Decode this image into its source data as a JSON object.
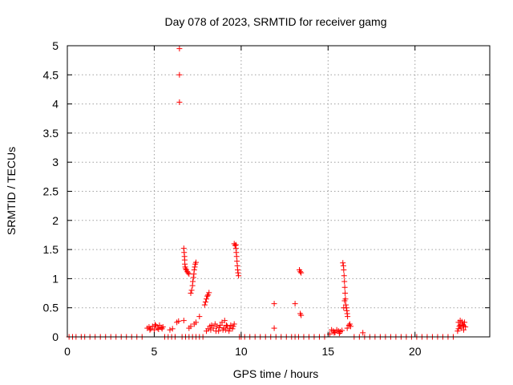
{
  "chart_data": {
    "type": "scatter",
    "title": "Day 078 of 2023, SRMTID for receiver gamg",
    "xlabel": "GPS time / hours",
    "ylabel": "SRMTID / TECUs",
    "xlim": [
      0,
      24.3
    ],
    "ylim": [
      0,
      5
    ],
    "xticks": [
      0,
      5,
      10,
      15,
      20
    ],
    "yticks": [
      0,
      0.5,
      1,
      1.5,
      2,
      2.5,
      3,
      3.5,
      4,
      4.5,
      5
    ],
    "xtick_labels": [
      "0",
      "5",
      "10",
      "15",
      "20"
    ],
    "ytick_labels": [
      "0",
      "0.5",
      "1",
      "1.5",
      "2",
      "2.5",
      "3",
      "3.5",
      "4",
      "4.5",
      "5"
    ],
    "grid": true,
    "marker": "plus",
    "color": "#ff0000",
    "points": [
      [
        0.1,
        0
      ],
      [
        0.3,
        0
      ],
      [
        0.5,
        0
      ],
      [
        0.8,
        0
      ],
      [
        1.0,
        0
      ],
      [
        1.3,
        0
      ],
      [
        1.6,
        0
      ],
      [
        1.9,
        0
      ],
      [
        2.2,
        0
      ],
      [
        2.5,
        0
      ],
      [
        2.8,
        0
      ],
      [
        3.1,
        0
      ],
      [
        3.4,
        0
      ],
      [
        3.7,
        0
      ],
      [
        4.0,
        0
      ],
      [
        4.3,
        0
      ],
      [
        4.6,
        0.15
      ],
      [
        4.7,
        0.17
      ],
      [
        4.8,
        0.14
      ],
      [
        4.9,
        0.18
      ],
      [
        5.0,
        0.12
      ],
      [
        5.1,
        0.19
      ],
      [
        5.2,
        0.15
      ],
      [
        5.3,
        0.2
      ],
      [
        5.4,
        0.16
      ],
      [
        5.5,
        0.17
      ],
      [
        4.75,
        0.12
      ],
      [
        5.05,
        0.21
      ],
      [
        5.25,
        0.13
      ],
      [
        5.45,
        0.14
      ],
      [
        5.6,
        0
      ],
      [
        5.8,
        0
      ],
      [
        6.0,
        0
      ],
      [
        6.2,
        0
      ],
      [
        5.9,
        0.12
      ],
      [
        6.05,
        0.14
      ],
      [
        6.3,
        0.25
      ],
      [
        6.4,
        0.27
      ],
      [
        6.7,
        0.28
      ],
      [
        6.45,
        4.95
      ],
      [
        6.45,
        4.5
      ],
      [
        6.45,
        4.03
      ],
      [
        6.7,
        1.52
      ],
      [
        6.72,
        1.45
      ],
      [
        6.74,
        1.38
      ],
      [
        6.75,
        1.32
      ],
      [
        6.76,
        1.25
      ],
      [
        6.78,
        1.2
      ],
      [
        6.8,
        1.17
      ],
      [
        6.85,
        1.15
      ],
      [
        6.9,
        1.12
      ],
      [
        6.95,
        1.1
      ],
      [
        7.0,
        1.08
      ],
      [
        7.1,
        0.75
      ],
      [
        7.15,
        0.8
      ],
      [
        7.2,
        0.88
      ],
      [
        7.22,
        0.95
      ],
      [
        7.25,
        1.02
      ],
      [
        7.28,
        1.08
      ],
      [
        7.3,
        1.15
      ],
      [
        7.33,
        1.2
      ],
      [
        7.36,
        1.25
      ],
      [
        7.4,
        1.28
      ],
      [
        7.0,
        0.15
      ],
      [
        7.1,
        0.18
      ],
      [
        7.3,
        0.22
      ],
      [
        7.4,
        0.25
      ],
      [
        7.6,
        0.35
      ],
      [
        6.6,
        0
      ],
      [
        6.8,
        0
      ],
      [
        7.0,
        0
      ],
      [
        7.2,
        0
      ],
      [
        7.4,
        0
      ],
      [
        7.6,
        0
      ],
      [
        7.8,
        0
      ],
      [
        7.9,
        0.55
      ],
      [
        7.95,
        0.6
      ],
      [
        8.0,
        0.65
      ],
      [
        8.05,
        0.7
      ],
      [
        8.1,
        0.72
      ],
      [
        8.15,
        0.76
      ],
      [
        8.0,
        0.1
      ],
      [
        8.1,
        0.14
      ],
      [
        8.2,
        0.18
      ],
      [
        8.3,
        0.2
      ],
      [
        8.4,
        0.15
      ],
      [
        8.5,
        0.22
      ],
      [
        8.6,
        0.18
      ],
      [
        8.7,
        0.1
      ],
      [
        8.8,
        0.2
      ],
      [
        8.9,
        0.25
      ],
      [
        9.0,
        0.15
      ],
      [
        9.05,
        0.28
      ],
      [
        9.1,
        0.12
      ],
      [
        9.2,
        0.18
      ],
      [
        9.3,
        0.1
      ],
      [
        9.4,
        0.2
      ],
      [
        9.5,
        0.14
      ],
      [
        9.6,
        0.22
      ],
      [
        8.25,
        0.12
      ],
      [
        8.55,
        0.1
      ],
      [
        8.75,
        0.16
      ],
      [
        8.95,
        0.12
      ],
      [
        9.15,
        0.2
      ],
      [
        9.35,
        0.15
      ],
      [
        9.55,
        0.18
      ],
      [
        9.6,
        1.6
      ],
      [
        9.65,
        1.57
      ],
      [
        9.7,
        1.52
      ],
      [
        9.72,
        1.45
      ],
      [
        9.74,
        1.38
      ],
      [
        9.76,
        1.3
      ],
      [
        9.78,
        1.22
      ],
      [
        9.8,
        1.15
      ],
      [
        9.82,
        1.1
      ],
      [
        9.85,
        1.05
      ],
      [
        9.7,
        1.58
      ],
      [
        9.9,
        0
      ],
      [
        10.0,
        0
      ],
      [
        10.2,
        0
      ],
      [
        10.5,
        0
      ],
      [
        10.8,
        0
      ],
      [
        11.1,
        0
      ],
      [
        11.4,
        0
      ],
      [
        11.7,
        0
      ],
      [
        12.0,
        0
      ],
      [
        12.3,
        0
      ],
      [
        12.6,
        0
      ],
      [
        12.9,
        0
      ],
      [
        13.1,
        0
      ],
      [
        13.3,
        0
      ],
      [
        13.6,
        0
      ],
      [
        13.9,
        0
      ],
      [
        14.2,
        0
      ],
      [
        14.5,
        0
      ],
      [
        14.8,
        0
      ],
      [
        11.9,
        0.57
      ],
      [
        11.9,
        0.15
      ],
      [
        13.1,
        0.57
      ],
      [
        13.35,
        1.15
      ],
      [
        13.4,
        1.12
      ],
      [
        13.45,
        1.1
      ],
      [
        13.4,
        0.4
      ],
      [
        13.45,
        0.37
      ],
      [
        15.1,
        0.05
      ],
      [
        15.2,
        0.12
      ],
      [
        15.3,
        0.1
      ],
      [
        15.4,
        0.08
      ],
      [
        15.5,
        0.12
      ],
      [
        15.6,
        0.1
      ],
      [
        15.7,
        0.09
      ],
      [
        15.8,
        0.11
      ],
      [
        15.35,
        0.07
      ],
      [
        15.65,
        0.06
      ],
      [
        15.85,
        1.27
      ],
      [
        15.88,
        1.22
      ],
      [
        15.9,
        1.15
      ],
      [
        15.92,
        1.05
      ],
      [
        15.94,
        0.95
      ],
      [
        15.96,
        0.85
      ],
      [
        15.98,
        0.75
      ],
      [
        16.0,
        0.65
      ],
      [
        16.02,
        0.55
      ],
      [
        16.05,
        0.5
      ],
      [
        16.08,
        0.45
      ],
      [
        16.1,
        0.4
      ],
      [
        16.12,
        0.35
      ],
      [
        15.9,
        0.5
      ],
      [
        15.95,
        0.62
      ],
      [
        16.1,
        0.15
      ],
      [
        16.2,
        0.2
      ],
      [
        16.3,
        0.18
      ],
      [
        16.25,
        0.22
      ],
      [
        16.5,
        0
      ],
      [
        16.8,
        0
      ],
      [
        17.0,
        0.07
      ],
      [
        17.1,
        0
      ],
      [
        17.4,
        0
      ],
      [
        17.7,
        0
      ],
      [
        18.0,
        0
      ],
      [
        18.3,
        0
      ],
      [
        18.6,
        0
      ],
      [
        18.9,
        0
      ],
      [
        19.2,
        0
      ],
      [
        19.5,
        0
      ],
      [
        19.8,
        0
      ],
      [
        20.1,
        0
      ],
      [
        20.4,
        0
      ],
      [
        20.7,
        0
      ],
      [
        21.0,
        0
      ],
      [
        21.3,
        0
      ],
      [
        21.6,
        0
      ],
      [
        21.9,
        0
      ],
      [
        22.2,
        0
      ],
      [
        22.45,
        0.1
      ],
      [
        22.5,
        0.25
      ],
      [
        22.55,
        0.18
      ],
      [
        22.6,
        0.28
      ],
      [
        22.65,
        0.15
      ],
      [
        22.7,
        0.22
      ],
      [
        22.75,
        0.2
      ],
      [
        22.8,
        0.12
      ],
      [
        22.85,
        0.25
      ],
      [
        22.9,
        0.17
      ],
      [
        22.5,
        0.14
      ],
      [
        22.6,
        0.2
      ],
      [
        22.7,
        0.26
      ],
      [
        22.8,
        0.19
      ]
    ]
  }
}
